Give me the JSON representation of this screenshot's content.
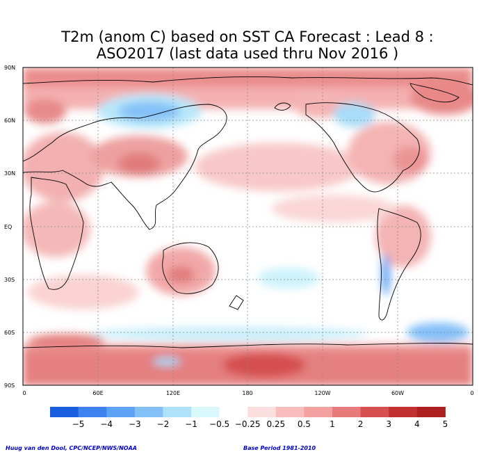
{
  "title_line1": "T2m (anom C) based on SST CA Forecast : Lead 8 :",
  "title_line2": "ASO2017 (last data used thru Nov 2016 )",
  "lat_labels": [
    "90N",
    "60N",
    "30N",
    "EQ",
    "30S",
    "60S",
    "90S"
  ],
  "lon_labels": [
    "0",
    "60E",
    "120E",
    "180",
    "120W",
    "60W",
    "0"
  ],
  "colorbar": {
    "colors": [
      "#1a5ee0",
      "#3d82ee",
      "#5ea2f5",
      "#84c0f8",
      "#aee2fa",
      "#d8f8fc",
      "#ffffff",
      "#fbdede",
      "#f8bcbc",
      "#f2a0a0",
      "#e77a7a",
      "#d65050",
      "#c33030",
      "#ad1f1f"
    ],
    "labels": [
      "−5",
      "−4",
      "−3",
      "−2",
      "−1",
      "−0.5",
      "−0.25",
      "0.25",
      "0.5",
      "1",
      "2",
      "3",
      "4",
      "5"
    ]
  },
  "credit_left": "Huug van den Dool, CPC/NCEP/NWS/NOAA",
  "credit_right": "Base Period 1981-2010"
}
